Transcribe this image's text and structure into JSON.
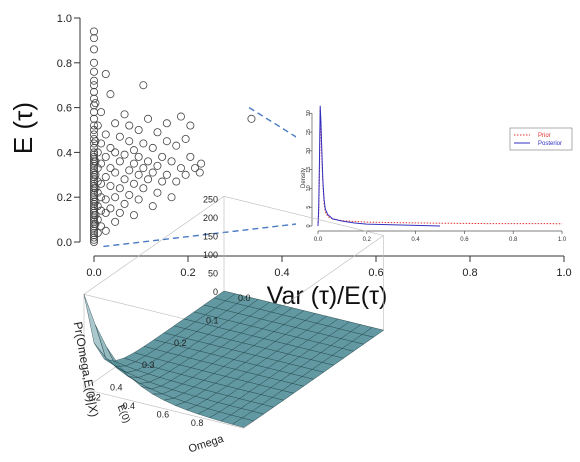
{
  "chart_data": [
    {
      "type": "scatter",
      "title": "",
      "xlabel": "Var (τ)/E(τ)",
      "ylabel": "E (τ)",
      "xlim": [
        0,
        1
      ],
      "ylim": [
        0,
        1
      ],
      "x_ticks": [
        0.0,
        0.2,
        0.4,
        0.6,
        0.8,
        1.0
      ],
      "y_ticks": [
        0.0,
        0.2,
        0.4,
        0.6,
        0.8,
        1.0
      ],
      "grid": false,
      "marker": "open-circle",
      "series": [
        {
          "points": [
            [
              0.0,
              0.0
            ],
            [
              0.0,
              0.01
            ],
            [
              0.0,
              0.02
            ],
            [
              0.0,
              0.03
            ],
            [
              0.0,
              0.04
            ],
            [
              0.0,
              0.05
            ],
            [
              0.0,
              0.06
            ],
            [
              0.0,
              0.07
            ],
            [
              0.0,
              0.08
            ],
            [
              0.0,
              0.09
            ],
            [
              0.0,
              0.1
            ],
            [
              0.0,
              0.11
            ],
            [
              0.0,
              0.12
            ],
            [
              0.0,
              0.13
            ],
            [
              0.0,
              0.14
            ],
            [
              0.0,
              0.15
            ],
            [
              0.0,
              0.16
            ],
            [
              0.0,
              0.17
            ],
            [
              0.0,
              0.18
            ],
            [
              0.0,
              0.19
            ],
            [
              0.0,
              0.2
            ],
            [
              0.0,
              0.21
            ],
            [
              0.0,
              0.22
            ],
            [
              0.0,
              0.23
            ],
            [
              0.0,
              0.24
            ],
            [
              0.0,
              0.25
            ],
            [
              0.0,
              0.26
            ],
            [
              0.0,
              0.27
            ],
            [
              0.0,
              0.28
            ],
            [
              0.0,
              0.29
            ],
            [
              0.0,
              0.3
            ],
            [
              0.0,
              0.31
            ],
            [
              0.0,
              0.32
            ],
            [
              0.0,
              0.33
            ],
            [
              0.0,
              0.34
            ],
            [
              0.0,
              0.35
            ],
            [
              0.0,
              0.36
            ],
            [
              0.0,
              0.37
            ],
            [
              0.0,
              0.38
            ],
            [
              0.0,
              0.39
            ],
            [
              0.0,
              0.4
            ],
            [
              0.0,
              0.42
            ],
            [
              0.0,
              0.44
            ],
            [
              0.0,
              0.46
            ],
            [
              0.0,
              0.48
            ],
            [
              0.0,
              0.5
            ],
            [
              0.0,
              0.52
            ],
            [
              0.0,
              0.55
            ],
            [
              0.0,
              0.58
            ],
            [
              0.0,
              0.61
            ],
            [
              0.0,
              0.64
            ],
            [
              0.0,
              0.67
            ],
            [
              0.0,
              0.7
            ],
            [
              0.0,
              0.72
            ],
            [
              0.0,
              0.76
            ],
            [
              0.0,
              0.8
            ],
            [
              0.0,
              0.86
            ],
            [
              0.0,
              0.91
            ],
            [
              0.0,
              0.94
            ],
            [
              0.003,
              0.08
            ],
            [
              0.003,
              0.12
            ],
            [
              0.003,
              0.18
            ],
            [
              0.003,
              0.24
            ],
            [
              0.003,
              0.3
            ],
            [
              0.003,
              0.36
            ],
            [
              0.003,
              0.45
            ],
            [
              0.003,
              0.62
            ],
            [
              0.008,
              0.04
            ],
            [
              0.008,
              0.1
            ],
            [
              0.008,
              0.16
            ],
            [
              0.008,
              0.22
            ],
            [
              0.008,
              0.27
            ],
            [
              0.008,
              0.33
            ],
            [
              0.008,
              0.4
            ],
            [
              0.008,
              0.52
            ],
            [
              0.015,
              0.07
            ],
            [
              0.015,
              0.14
            ],
            [
              0.015,
              0.2
            ],
            [
              0.015,
              0.26
            ],
            [
              0.015,
              0.35
            ],
            [
              0.015,
              0.44
            ],
            [
              0.015,
              0.58
            ],
            [
              0.025,
              0.05
            ],
            [
              0.025,
              0.13
            ],
            [
              0.025,
              0.19
            ],
            [
              0.025,
              0.29
            ],
            [
              0.025,
              0.38
            ],
            [
              0.025,
              0.48
            ],
            [
              0.025,
              0.75
            ],
            [
              0.035,
              0.15
            ],
            [
              0.035,
              0.25
            ],
            [
              0.035,
              0.33
            ],
            [
              0.035,
              0.42
            ],
            [
              0.035,
              0.66
            ],
            [
              0.045,
              0.09
            ],
            [
              0.045,
              0.2
            ],
            [
              0.045,
              0.31
            ],
            [
              0.045,
              0.4
            ],
            [
              0.045,
              0.53
            ],
            [
              0.055,
              0.13
            ],
            [
              0.055,
              0.24
            ],
            [
              0.055,
              0.36
            ],
            [
              0.055,
              0.47
            ],
            [
              0.065,
              0.17
            ],
            [
              0.065,
              0.28
            ],
            [
              0.065,
              0.39
            ],
            [
              0.065,
              0.57
            ],
            [
              0.075,
              0.21
            ],
            [
              0.075,
              0.32
            ],
            [
              0.075,
              0.45
            ],
            [
              0.075,
              0.52
            ],
            [
              0.085,
              0.12
            ],
            [
              0.085,
              0.26
            ],
            [
              0.085,
              0.35
            ],
            [
              0.085,
              0.41
            ],
            [
              0.095,
              0.19
            ],
            [
              0.095,
              0.3
            ],
            [
              0.095,
              0.38
            ],
            [
              0.095,
              0.5
            ],
            [
              0.105,
              0.24
            ],
            [
              0.105,
              0.33
            ],
            [
              0.105,
              0.44
            ],
            [
              0.105,
              0.7
            ],
            [
              0.115,
              0.28
            ],
            [
              0.115,
              0.36
            ],
            [
              0.115,
              0.55
            ],
            [
              0.125,
              0.16
            ],
            [
              0.125,
              0.31
            ],
            [
              0.125,
              0.42
            ],
            [
              0.135,
              0.22
            ],
            [
              0.135,
              0.34
            ],
            [
              0.135,
              0.49
            ],
            [
              0.145,
              0.27
            ],
            [
              0.145,
              0.38
            ],
            [
              0.155,
              0.3
            ],
            [
              0.155,
              0.45
            ],
            [
              0.155,
              0.53
            ],
            [
              0.165,
              0.2
            ],
            [
              0.165,
              0.36
            ],
            [
              0.175,
              0.27
            ],
            [
              0.175,
              0.43
            ],
            [
              0.185,
              0.33
            ],
            [
              0.185,
              0.56
            ],
            [
              0.195,
              0.3
            ],
            [
              0.195,
              0.46
            ],
            [
              0.205,
              0.38
            ],
            [
              0.205,
              0.52
            ],
            [
              0.215,
              0.33
            ],
            [
              0.225,
              0.31
            ],
            [
              0.228,
              0.35
            ],
            [
              0.335,
              0.55
            ]
          ]
        }
      ],
      "annotations": [
        {
          "type": "dashed-line",
          "color": "#4a7bc1",
          "from": [
            0.02,
            -0.02
          ],
          "to": [
            0.47,
            0.09
          ]
        },
        {
          "type": "dashed-line",
          "color": "#4a7bc1",
          "from": [
            0.33,
            0.6
          ],
          "to": [
            0.72,
            0.09
          ]
        }
      ]
    },
    {
      "type": "line",
      "title": "",
      "xlabel": "",
      "ylabel": "Density",
      "xlim": [
        0,
        1
      ],
      "ylim": [
        0,
        33
      ],
      "x_ticks": [
        0.0,
        0.2,
        0.4,
        0.6,
        0.8,
        1.0
      ],
      "y_ticks": [
        0,
        5,
        10,
        15,
        20,
        25,
        30
      ],
      "legend_position": "top-right",
      "series": [
        {
          "name": "Prior",
          "color": "#e03030",
          "dash": "dotted",
          "x": [
            0.0,
            0.003,
            0.006,
            0.009,
            0.012,
            0.016,
            0.02,
            0.025,
            0.03,
            0.04,
            0.06,
            0.1,
            0.2,
            0.3,
            0.5,
            0.7,
            1.0
          ],
          "y": [
            0.0,
            3.0,
            14.0,
            31.0,
            27.0,
            18.0,
            11.0,
            6.0,
            3.8,
            2.5,
            1.9,
            1.4,
            1.05,
            0.9,
            0.75,
            0.65,
            0.6
          ]
        },
        {
          "name": "Posterior",
          "color": "#3030c0",
          "dash": "solid",
          "x": [
            0.0,
            0.003,
            0.006,
            0.009,
            0.012,
            0.015,
            0.02,
            0.025,
            0.03,
            0.04,
            0.05,
            0.06,
            0.08,
            0.1,
            0.15,
            0.2,
            0.3,
            0.4,
            0.5
          ],
          "y": [
            0.0,
            5.0,
            18.0,
            32.0,
            28.0,
            21.0,
            12.0,
            7.0,
            4.5,
            3.0,
            2.5,
            1.9,
            1.6,
            1.3,
            0.8,
            0.5,
            0.35,
            0.15,
            0.0
          ]
        }
      ]
    },
    {
      "type": "surface3d",
      "title": "",
      "axis_labels": {
        "z": "Pr(Omega,E(0)|X)",
        "x": "Omega",
        "y": "E(0)"
      },
      "z_ticks": [
        "0",
        "50",
        "100",
        "150",
        "200",
        "250"
      ],
      "x_ticks": [
        "0.0",
        "0.1",
        "0.2",
        "0.3",
        "0.4"
      ],
      "y_ticks": [
        "0.2",
        "0.4",
        "0.6",
        "0.8"
      ],
      "peak": {
        "Omega": 0.0,
        "E0": 0.0,
        "value": 250
      },
      "surface_color": "#4f8c96"
    }
  ]
}
